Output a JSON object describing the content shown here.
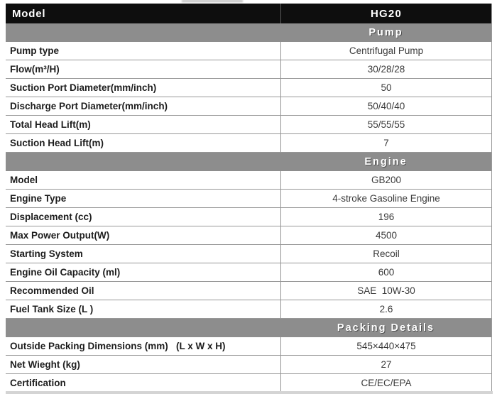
{
  "header": {
    "model_label": "Model",
    "model_value": "HG20"
  },
  "sections": [
    {
      "title": "Pump",
      "rows": [
        {
          "label": "Pump type",
          "value": "Centrifugal Pump"
        },
        {
          "label": "Flow(m³/H)",
          "value": "30/28/28"
        },
        {
          "label": "Suction Port Diameter(mm/inch)",
          "value": "50"
        },
        {
          "label": "Discharge Port Diameter(mm/inch)",
          "value": "50/40/40"
        },
        {
          "label": "Total Head Lift(m)",
          "value": "55/55/55"
        },
        {
          "label": "Suction Head Lift(m)",
          "value": "7"
        }
      ]
    },
    {
      "title": "Engine",
      "rows": [
        {
          "label": "Model",
          "value": "GB200"
        },
        {
          "label": "Engine Type",
          "value": "4-stroke Gasoline Engine"
        },
        {
          "label": "Displacement (cc)",
          "value": "196"
        },
        {
          "label": "Max Power Output(W)",
          "value": "4500"
        },
        {
          "label": "Starting System",
          "value": "Recoil"
        },
        {
          "label": "Engine Oil Capacity (ml)",
          "value": "600"
        },
        {
          "label": "Recommended Oil",
          "value": "SAE  10W-30"
        },
        {
          "label": "Fuel Tank Size (L )",
          "value": "2.6"
        }
      ]
    },
    {
      "title": "Packing Details",
      "rows": [
        {
          "label": "Outside Packing Dimensions (mm)   (L x W x H)",
          "value": "545×440×475"
        },
        {
          "label": "Net Wieght (kg)",
          "value": "27"
        },
        {
          "label": "Certification",
          "value": "CE/EC/EPA"
        }
      ]
    }
  ],
  "colors": {
    "header_bg": "#0e0e0e",
    "header_text": "#ffffff",
    "section_band_bg": "#8d8d8d",
    "section_band_text": "#ffffff",
    "grid_line": "#979797",
    "label_text": "#1d1d1d",
    "value_text": "#3a3a3a"
  }
}
